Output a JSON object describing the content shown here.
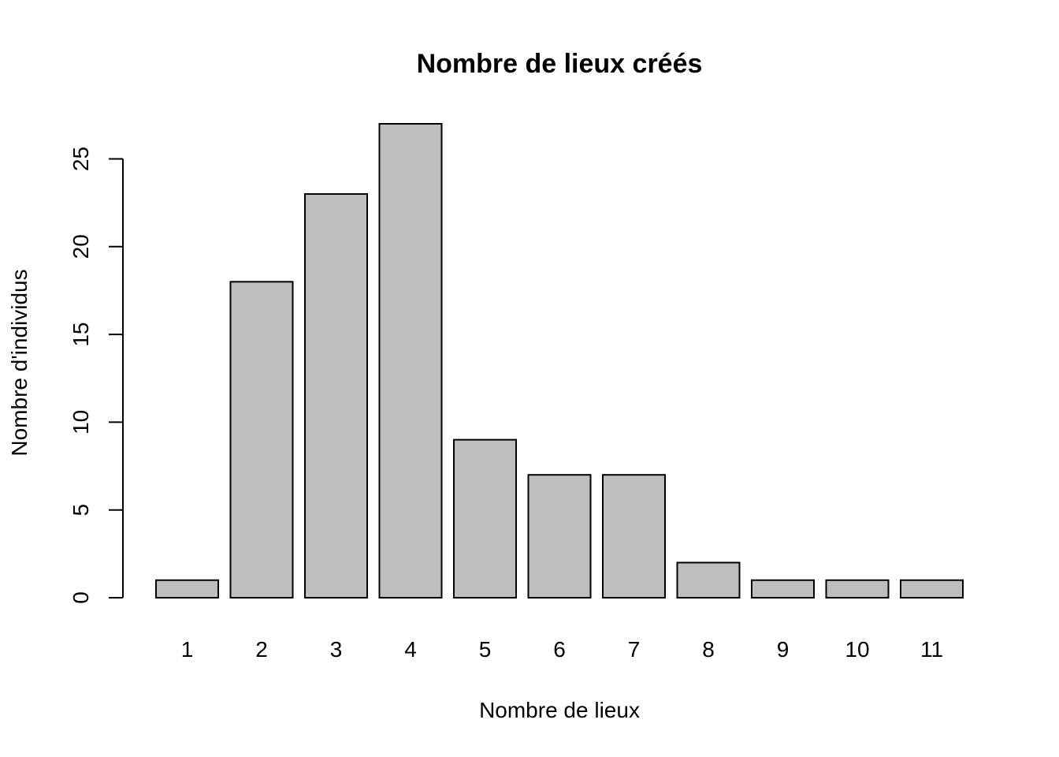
{
  "chart_data": {
    "type": "bar",
    "title": "Nombre de lieux créés",
    "xlabel": "Nombre de lieux",
    "ylabel": "Nombre d'individus",
    "categories": [
      "1",
      "2",
      "3",
      "4",
      "5",
      "6",
      "7",
      "8",
      "9",
      "10",
      "11"
    ],
    "values": [
      1,
      18,
      23,
      27,
      9,
      7,
      7,
      2,
      1,
      1,
      1
    ],
    "y_ticks": [
      0,
      5,
      10,
      15,
      20,
      25
    ],
    "ylim": [
      0,
      27
    ],
    "grid": false,
    "legend": "none",
    "colors": {
      "bar_fill": "#bebebe",
      "bar_stroke": "#000000"
    }
  }
}
